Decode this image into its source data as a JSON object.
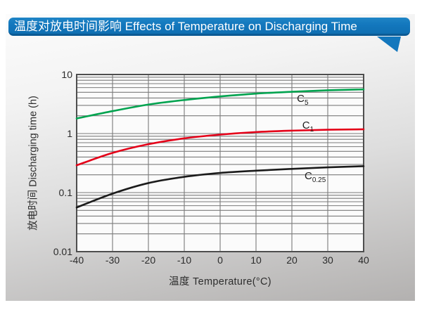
{
  "header": {
    "title": "温度对放电时间影响 Effects of Temperature on Discharging Time"
  },
  "colors": {
    "banner": "#1377bd",
    "banner_shadow": "#0b5a94",
    "grid": "#7b7b7b",
    "plot_border": "#4e4e4e",
    "plot_bg": "#fbfbfb",
    "tick_text": "#2b2b2b"
  },
  "chart_data": {
    "type": "line",
    "title": "温度对放电时间影响 Effects of Temperature on Discharging Time",
    "xlabel": "温度  Temperature(°C)",
    "ylabel": "放电时间 Discharging time (h)",
    "x_ticks": [
      -40,
      -30,
      -20,
      -10,
      0,
      10,
      20,
      30,
      40
    ],
    "x_tick_labels": [
      "-40",
      "-30",
      "-20",
      "-10",
      "0",
      "10",
      "20",
      "30",
      "40"
    ],
    "y_ticks": [
      10,
      1,
      0.1,
      0.01
    ],
    "y_tick_labels": [
      "10",
      "1",
      "0.1",
      "0.01"
    ],
    "xlim": [
      -40,
      40
    ],
    "ylim": [
      0.01,
      10
    ],
    "y_scale": "log",
    "grid": true,
    "legend_position": "inline-labels",
    "x": [
      -40,
      -30,
      -20,
      -10,
      0,
      10,
      20,
      30,
      40
    ],
    "series": [
      {
        "name": "C5",
        "label_base": "C",
        "label_sub": "5",
        "color": "#00a34f",
        "values": [
          1.8,
          2.4,
          3.1,
          3.7,
          4.25,
          4.75,
          5.1,
          5.4,
          5.6
        ],
        "label_pos": {
          "x": 23,
          "y": 3.7
        }
      },
      {
        "name": "C1",
        "label_base": "C",
        "label_sub": "1",
        "color": "#e40018",
        "values": [
          0.29,
          0.47,
          0.66,
          0.83,
          0.96,
          1.06,
          1.12,
          1.16,
          1.18
        ],
        "label_pos": {
          "x": 24.5,
          "y": 1.33
        }
      },
      {
        "name": "C0.25",
        "label_base": "C",
        "label_sub": "0.25",
        "color": "#1b1b1b",
        "values": [
          0.056,
          0.096,
          0.145,
          0.185,
          0.215,
          0.235,
          0.252,
          0.268,
          0.28
        ],
        "label_pos": {
          "x": 26.5,
          "y": 0.183
        }
      }
    ]
  }
}
